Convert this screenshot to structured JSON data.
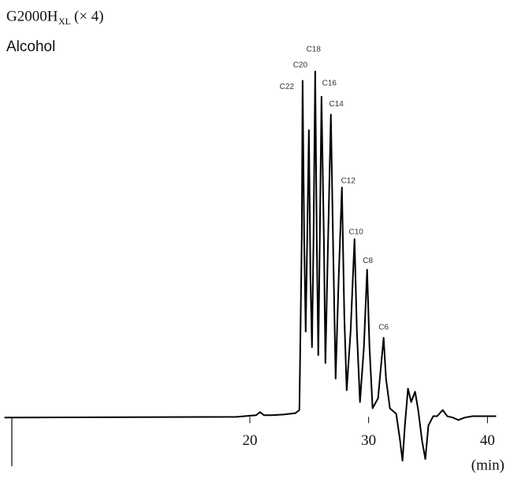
{
  "chart_data": {
    "type": "line",
    "title": "G2000H",
    "title_subscript": "XL",
    "title_suffix": "(× 4)",
    "subtitle": "Alcohol",
    "x_label": "(min)",
    "xlim": [
      -0.7,
      41.5
    ],
    "xticks": [
      20,
      30,
      40
    ],
    "ylim": [
      -17,
      107
    ],
    "series": [
      {
        "color": "#000000",
        "x": [
          -0.66,
          18.87,
          20.53,
          20.86,
          21.19,
          21.85,
          22.85,
          23.84,
          24.17,
          24.37,
          24.44,
          24.57,
          24.7,
          24.83,
          24.97,
          25.1,
          25.23,
          25.36,
          25.5,
          25.63,
          25.76,
          25.89,
          26.03,
          26.23,
          26.36,
          26.56,
          26.82,
          27.02,
          27.22,
          27.48,
          27.75,
          27.95,
          28.15,
          28.48,
          28.81,
          29.01,
          29.27,
          29.6,
          29.87,
          30.07,
          30.33,
          30.79,
          31.26,
          31.46,
          31.79,
          32.32,
          32.65,
          32.85,
          33.05,
          33.31,
          33.58,
          33.91,
          34.17,
          34.5,
          34.77,
          35.03,
          35.43,
          35.76,
          36.23,
          36.62,
          37.09,
          37.55,
          38.08,
          38.74,
          40.73
        ],
        "values": [
          -0.2,
          0,
          0.5,
          1.4,
          0.5,
          0.5,
          0.7,
          1.1,
          2.0,
          51.9,
          97.3,
          51.9,
          24.7,
          51.9,
          83.0,
          40.6,
          20.2,
          51.9,
          100.0,
          51.9,
          17.9,
          51.9,
          92.7,
          51.9,
          15.6,
          47.4,
          87.5,
          47.4,
          11.1,
          40.6,
          66.4,
          29.3,
          7.7,
          24.7,
          51.5,
          24.7,
          4.3,
          20.2,
          42.6,
          20.2,
          2.5,
          5.4,
          22.9,
          11.1,
          2.5,
          0.9,
          -7.0,
          -12.7,
          -2.5,
          8.2,
          4.3,
          7.3,
          2.0,
          -7.0,
          -12.2,
          -2.5,
          0.2,
          0.2,
          2.0,
          0.2,
          -0.2,
          -0.9,
          -0.2,
          0.2,
          0.2
        ]
      }
    ],
    "annotations": [
      {
        "text": "C22",
        "x": 23.11,
        "y": 95.5
      },
      {
        "text": "C20",
        "x": 24.24,
        "y": 101.8
      },
      {
        "text": "C18",
        "x": 25.36,
        "y": 106.3
      },
      {
        "text": "C16",
        "x": 26.69,
        "y": 96.6
      },
      {
        "text": "C14",
        "x": 27.28,
        "y": 90.5
      },
      {
        "text": "C12",
        "x": 28.28,
        "y": 68.3
      },
      {
        "text": "C10",
        "x": 28.94,
        "y": 53.5
      },
      {
        "text": "C8",
        "x": 29.93,
        "y": 45.1
      },
      {
        "text": "C6",
        "x": 31.26,
        "y": 25.9
      }
    ]
  }
}
